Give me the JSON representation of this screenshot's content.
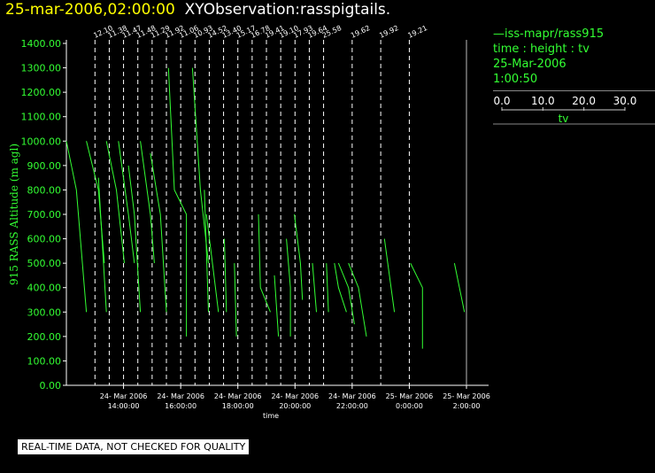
{
  "title": {
    "datetime": "25-mar-2006,02:00:00",
    "observation": "XYObservation:rasspigtails."
  },
  "legend": {
    "series_line": "—iss-mapr/rass915",
    "axes_text": "time : height : tv",
    "date": "25-Mar-2006",
    "time": "1:00:50",
    "scale_ticks": [
      "0.0",
      "10.0",
      "20.0",
      "30.0"
    ],
    "scale_label": "tv"
  },
  "notice": "REAL-TIME DATA, NOT CHECKED FOR QUALITY",
  "colors": {
    "series": "#33ff33",
    "axis": "#ffffff",
    "title_date": "#ffff00",
    "background": "#000000"
  },
  "chart_data": {
    "type": "line",
    "ylabel": "915 RASS Altitude (m agl)",
    "xlabel": "time",
    "ylim": [
      0,
      1400
    ],
    "yticks": [
      "0.00",
      "100.00",
      "200.00",
      "300.00",
      "400.00",
      "500.00",
      "600.00",
      "700.00",
      "800.00",
      "900.00",
      "1000.00",
      "1100.00",
      "1200.00",
      "1300.00",
      "1400.00"
    ],
    "xlim": [
      "24-Mar-2006 12:00",
      "25-Mar-2006 02:00"
    ],
    "xticks": [
      {
        "date": "24- Mar 2006",
        "time": "14:00:00"
      },
      {
        "date": "24- Mar 2006",
        "time": "16:00:00"
      },
      {
        "date": "24- Mar 2006",
        "time": "18:00:00"
      },
      {
        "date": "24- Mar 2006",
        "time": "20:00:00"
      },
      {
        "date": "24- Mar 2006",
        "time": "22:00:00"
      },
      {
        "date": "25- Mar 2006",
        "time": "0:00:00"
      },
      {
        "date": "25- Mar 2006",
        "time": "2:00:00"
      }
    ],
    "profiles": [
      {
        "time": "24-Mar-2006 13:00",
        "label": "12.10"
      },
      {
        "time": "24-Mar-2006 13:30",
        "label": "11.38"
      },
      {
        "time": "24-Mar-2006 14:00",
        "label": "11.47"
      },
      {
        "time": "24-Mar-2006 14:30",
        "label": "11.48"
      },
      {
        "time": "24-Mar-2006 15:00",
        "label": "11.29"
      },
      {
        "time": "24-Mar-2006 15:30",
        "label": "11.92"
      },
      {
        "time": "24-Mar-2006 16:00",
        "label": "11.06"
      },
      {
        "time": "24-Mar-2006 16:30",
        "label": "10.93"
      },
      {
        "time": "24-Mar-2006 17:00",
        "label": "14.52"
      },
      {
        "time": "24-Mar-2006 17:30",
        "label": "13.40"
      },
      {
        "time": "24-Mar-2006 18:00",
        "label": "15.17"
      },
      {
        "time": "24-Mar-2006 18:30",
        "label": "16.78"
      },
      {
        "time": "24-Mar-2006 19:00",
        "label": "19.41"
      },
      {
        "time": "24-Mar-2006 19:30",
        "label": "19.10"
      },
      {
        "time": "24-Mar-2006 20:00",
        "label": "17.93"
      },
      {
        "time": "24-Mar-2006 20:30",
        "label": "19.64"
      },
      {
        "time": "24-Mar-2006 21:00",
        "label": "25.58"
      },
      {
        "time": "24-Mar-2006 22:00",
        "label": "19.62"
      },
      {
        "time": "24-Mar-2006 23:00",
        "label": "19.92"
      },
      {
        "time": "25-Mar-2006 00:00",
        "label": "19.21"
      }
    ],
    "series": [
      {
        "name": "iss-mapr/rass915",
        "segments": [
          [
            [
              0.0,
              1000
            ],
            [
              2.5,
              800
            ],
            [
              5.0,
              300
            ]
          ],
          [
            [
              5.0,
              1000
            ],
            [
              8.0,
              800
            ],
            [
              9.5,
              500
            ]
          ],
          [
            [
              8.0,
              850
            ],
            [
              10.0,
              300
            ]
          ],
          [
            [
              10.0,
              1000
            ],
            [
              12.5,
              800
            ],
            [
              14.5,
              500
            ]
          ],
          [
            [
              13.0,
              1000
            ],
            [
              15.5,
              700
            ],
            [
              17.0,
              500
            ]
          ],
          [
            [
              15.5,
              900
            ],
            [
              17.0,
              700
            ],
            [
              18.5,
              300
            ]
          ],
          [
            [
              18.5,
              1000
            ],
            [
              21.0,
              700
            ],
            [
              22.0,
              500
            ]
          ],
          [
            [
              21.0,
              950
            ],
            [
              23.5,
              700
            ],
            [
              25.0,
              300
            ]
          ],
          [
            [
              25.5,
              1300
            ],
            [
              27.0,
              800
            ],
            [
              30.0,
              700
            ]
          ],
          [
            [
              30.0,
              700
            ],
            [
              30.0,
              200
            ]
          ],
          [
            [
              31.5,
              1300
            ],
            [
              33.5,
              800
            ],
            [
              35.5,
              500
            ]
          ],
          [
            [
              34.5,
              800
            ],
            [
              35.5,
              300
            ]
          ],
          [
            [
              35.0,
              700
            ],
            [
              36.5,
              500
            ],
            [
              38.0,
              300
            ]
          ],
          [
            [
              39.5,
              600
            ],
            [
              40.0,
              300
            ]
          ],
          [
            [
              42.0,
              500
            ],
            [
              42.5,
              200
            ]
          ],
          [
            [
              48.0,
              700
            ],
            [
              48.5,
              400
            ],
            [
              51.0,
              300
            ]
          ],
          [
            [
              52.0,
              450
            ],
            [
              53.0,
              200
            ]
          ],
          [
            [
              55.0,
              600
            ],
            [
              56.0,
              400
            ],
            [
              56.0,
              200
            ]
          ],
          [
            [
              57.0,
              700
            ],
            [
              58.5,
              500
            ],
            [
              59.0,
              350
            ]
          ],
          [
            [
              61.5,
              500
            ],
            [
              62.5,
              300
            ]
          ],
          [
            [
              65.0,
              500
            ],
            [
              65.5,
              300
            ]
          ],
          [
            [
              67.0,
              500
            ],
            [
              68.0,
              400
            ],
            [
              70.0,
              300
            ]
          ],
          [
            [
              68.0,
              500
            ],
            [
              70.5,
              400
            ],
            [
              72.0,
              250
            ]
          ],
          [
            [
              70.5,
              500
            ],
            [
              73.0,
              400
            ],
            [
              75.0,
              200
            ]
          ],
          [
            [
              79.5,
              600
            ],
            [
              82.0,
              300
            ]
          ],
          [
            [
              86.0,
              500
            ],
            [
              89.0,
              400
            ],
            [
              89.0,
              150
            ]
          ],
          [
            [
              97.0,
              500
            ],
            [
              99.5,
              300
            ]
          ]
        ]
      }
    ]
  }
}
